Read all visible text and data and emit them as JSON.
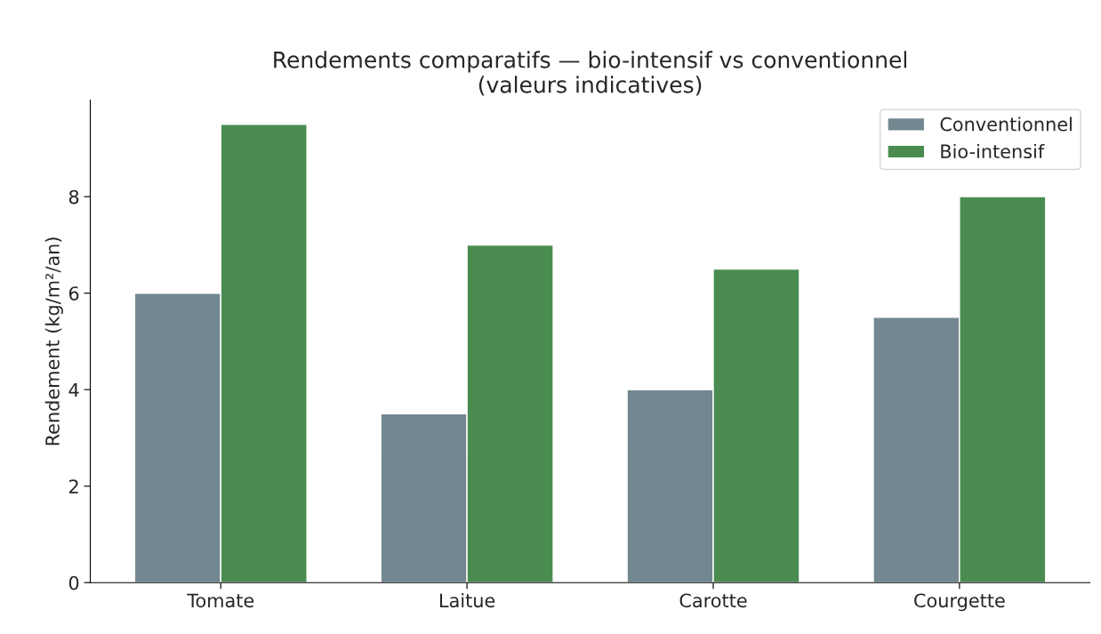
{
  "chart_data": {
    "type": "bar",
    "title": "Rendements comparatifs — bio-intensif vs conventionnel\n(valeurs indicatives)",
    "ylabel": "Rendement (kg/m²/an)",
    "categories": [
      "Tomate",
      "Laitue",
      "Carotte",
      "Courgette"
    ],
    "series": [
      {
        "name": "Conventionnel",
        "color": "#72878f",
        "values": [
          6,
          3.5,
          4,
          5.5
        ]
      },
      {
        "name": "Bio-intensif",
        "color": "#4a8c50",
        "values": [
          9.5,
          7,
          6.5,
          8
        ]
      }
    ],
    "ylim": [
      0,
      10
    ],
    "yticks": [
      0,
      2,
      4,
      6,
      8
    ],
    "grid": false,
    "legend": "top right"
  }
}
